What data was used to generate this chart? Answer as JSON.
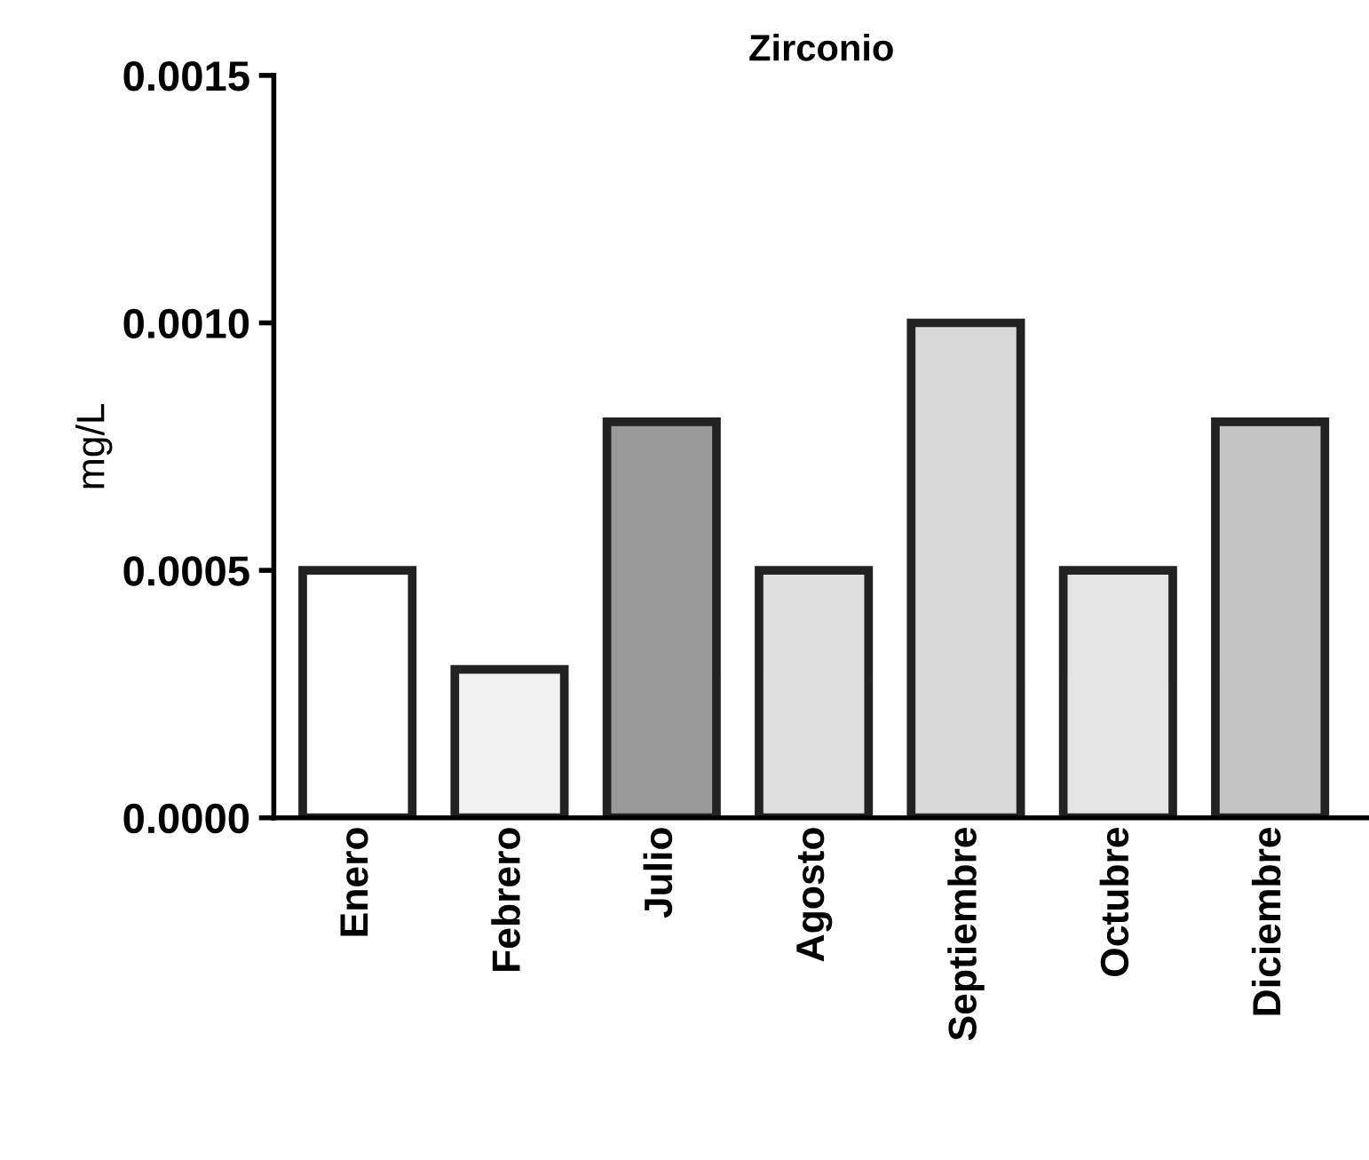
{
  "chart_data": {
    "type": "bar",
    "title": "Zirconio",
    "ylabel": "mg/L",
    "categories": [
      "Enero",
      "Febrero",
      "Julio",
      "Agosto",
      "Septiembre",
      "Octubre",
      "Diciembre"
    ],
    "values": [
      0.0005,
      0.0003,
      0.0008,
      0.0005,
      0.001,
      0.0005,
      0.0008
    ],
    "colors": [
      "#ffffff",
      "#f2f2f2",
      "#9a9a9a",
      "#dedede",
      "#d8d8d8",
      "#e4e4e4",
      "#c4c4c4"
    ],
    "ylim": [
      0,
      0.0015
    ],
    "yticks": [
      {
        "value": 0,
        "label": "0.0000"
      },
      {
        "value": 0.0005,
        "label": "0.0005"
      },
      {
        "value": 0.001,
        "label": "0.0010"
      },
      {
        "value": 0.0015,
        "label": "0.0015"
      }
    ],
    "grid": false,
    "legend": false
  }
}
